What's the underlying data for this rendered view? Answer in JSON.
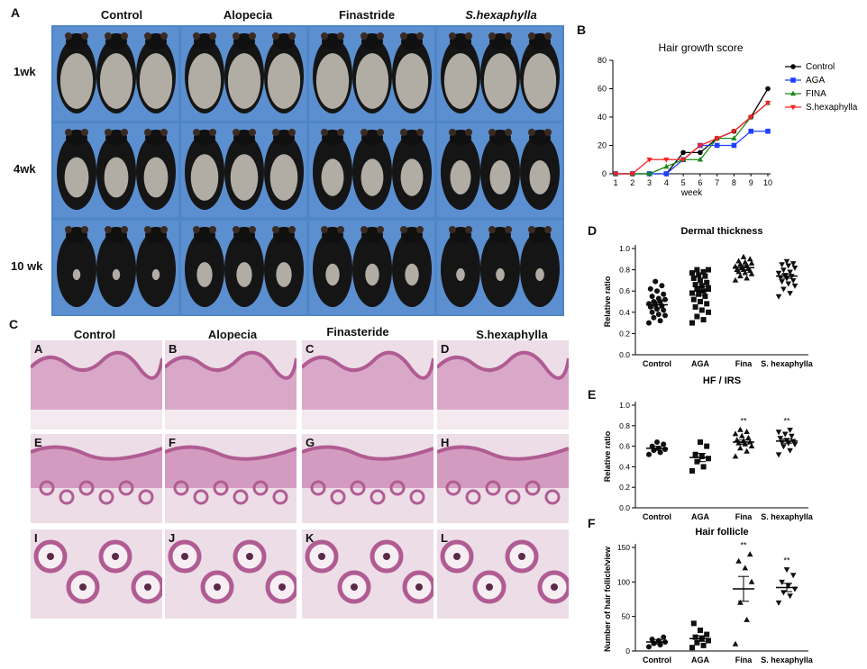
{
  "panel_labels": {
    "A": "A",
    "B": "B",
    "C": "C",
    "D": "D",
    "E": "E",
    "F": "F"
  },
  "panel_a": {
    "columns": [
      "Control",
      "Alopecia",
      "Finastride",
      "S.hexaphylla"
    ],
    "rows": [
      "1wk",
      "4wk",
      "10 wk"
    ]
  },
  "panel_c": {
    "columns": [
      "Control",
      "Alopecia",
      "Finasteride",
      "S.hexaphylla"
    ],
    "tiles": [
      "A",
      "B",
      "C",
      "D",
      "E",
      "F",
      "G",
      "H",
      "I",
      "J",
      "K",
      "L"
    ]
  },
  "colors": {
    "photo_bg": "#4f86c6",
    "control": "#000000",
    "aga": "#1f3fff",
    "fina": "#1a8a1a",
    "shex": "#ff2020",
    "he_light": "#eddde6",
    "he_dark": "#b05c93"
  },
  "chart_data": [
    {
      "id": "B",
      "type": "line",
      "title": "Hair growth score",
      "xlabel": "week",
      "ylabel": "",
      "x": [
        1,
        2,
        3,
        4,
        5,
        6,
        7,
        8,
        9,
        10
      ],
      "ylim": [
        0,
        80
      ],
      "yticks": [
        0,
        20,
        40,
        60,
        80
      ],
      "series": [
        {
          "name": "Control",
          "marker": "circle",
          "color": "#000000",
          "values": [
            0,
            0,
            0,
            0,
            15,
            15,
            25,
            30,
            40,
            60
          ]
        },
        {
          "name": "AGA",
          "marker": "square",
          "color": "#1f3fff",
          "values": [
            0,
            0,
            0,
            0,
            10,
            20,
            20,
            20,
            30,
            30
          ]
        },
        {
          "name": "FINA",
          "marker": "triangle",
          "color": "#1a8a1a",
          "values": [
            0,
            0,
            0,
            5,
            10,
            10,
            25,
            25,
            40,
            50
          ]
        },
        {
          "name": "S.hexaphylla",
          "marker": "triangle-down",
          "color": "#ff2020",
          "values": [
            0,
            0,
            10,
            10,
            10,
            20,
            25,
            30,
            40,
            50
          ]
        }
      ],
      "legend": "right"
    },
    {
      "id": "D",
      "type": "scatter",
      "title": "Dermal thickness",
      "ylabel": "Relative ratio",
      "categories": [
        "Control",
        "AGA",
        "Fina",
        "S. hexaphylla"
      ],
      "ylim": [
        0,
        1.0
      ],
      "yticks": [
        "0.0",
        "0.2",
        "0.4",
        "0.6",
        "0.8",
        "1.0"
      ],
      "means": [
        0.47,
        0.6,
        0.82,
        0.74
      ],
      "sem": [
        0.03,
        0.04,
        0.02,
        0.02
      ],
      "markers": [
        "circle",
        "square",
        "triangle",
        "triangle-down"
      ],
      "points": [
        [
          0.3,
          0.32,
          0.35,
          0.37,
          0.38,
          0.4,
          0.42,
          0.43,
          0.45,
          0.46,
          0.47,
          0.48,
          0.5,
          0.5,
          0.52,
          0.53,
          0.55,
          0.57,
          0.6,
          0.62,
          0.65,
          0.69
        ],
        [
          0.3,
          0.33,
          0.36,
          0.4,
          0.42,
          0.45,
          0.48,
          0.5,
          0.52,
          0.55,
          0.57,
          0.58,
          0.6,
          0.62,
          0.63,
          0.65,
          0.66,
          0.68,
          0.7,
          0.72,
          0.74,
          0.75,
          0.77,
          0.78,
          0.8,
          0.8
        ],
        [
          0.7,
          0.72,
          0.74,
          0.76,
          0.77,
          0.78,
          0.79,
          0.8,
          0.8,
          0.81,
          0.82,
          0.83,
          0.84,
          0.85,
          0.86,
          0.87,
          0.88,
          0.9,
          0.92
        ],
        [
          0.55,
          0.58,
          0.62,
          0.65,
          0.67,
          0.69,
          0.7,
          0.72,
          0.73,
          0.74,
          0.75,
          0.77,
          0.78,
          0.8,
          0.82,
          0.84,
          0.85,
          0.86,
          0.88
        ]
      ]
    },
    {
      "id": "E",
      "type": "scatter",
      "title": "HF / IRS",
      "ylabel": "Relative ratio",
      "categories": [
        "Control",
        "AGA",
        "Fina",
        "S. hexaphylla"
      ],
      "ylim": [
        0,
        1.0
      ],
      "yticks": [
        "0.0",
        "0.2",
        "0.4",
        "0.6",
        "0.8",
        "1.0"
      ],
      "means": [
        0.58,
        0.49,
        0.64,
        0.65
      ],
      "sem": [
        0.02,
        0.04,
        0.02,
        0.02
      ],
      "markers": [
        "circle",
        "square",
        "triangle",
        "triangle-down"
      ],
      "significance": [
        "",
        "",
        "**",
        "**"
      ],
      "points": [
        [
          0.52,
          0.54,
          0.56,
          0.57,
          0.58,
          0.6,
          0.62,
          0.64
        ],
        [
          0.36,
          0.4,
          0.45,
          0.48,
          0.5,
          0.52,
          0.6,
          0.64
        ],
        [
          0.5,
          0.55,
          0.58,
          0.6,
          0.62,
          0.63,
          0.64,
          0.65,
          0.66,
          0.68,
          0.7,
          0.72,
          0.74,
          0.76
        ],
        [
          0.52,
          0.56,
          0.6,
          0.62,
          0.63,
          0.64,
          0.65,
          0.66,
          0.68,
          0.7,
          0.72,
          0.74,
          0.76
        ]
      ]
    },
    {
      "id": "F",
      "type": "scatter",
      "title": "Hair follicle",
      "ylabel": "Number of hair follicle/view",
      "categories": [
        "Control",
        "AGA",
        "Fina",
        "S. hexaphylla"
      ],
      "ylim": [
        0,
        150
      ],
      "yticks": [
        "0",
        "50",
        "100",
        "150"
      ],
      "means": [
        13,
        18,
        90,
        92
      ],
      "sem": [
        3,
        4,
        18,
        6
      ],
      "markers": [
        "circle",
        "square",
        "triangle",
        "triangle-down"
      ],
      "significance": [
        "",
        "",
        "**",
        "**"
      ],
      "points": [
        [
          6,
          9,
          11,
          13,
          15,
          17,
          20
        ],
        [
          5,
          8,
          12,
          15,
          18,
          20,
          24,
          30,
          40
        ],
        [
          10,
          45,
          70,
          100,
          120,
          130,
          140
        ],
        [
          70,
          80,
          85,
          90,
          95,
          100,
          110,
          118
        ]
      ]
    }
  ]
}
